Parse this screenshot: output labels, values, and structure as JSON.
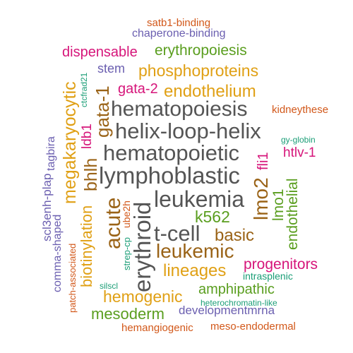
{
  "colors": {
    "gray": "#555555",
    "brown": "#9a6317",
    "gold": "#e0a015",
    "green": "#5a9e1f",
    "magenta": "#d6157a",
    "purple": "#6b5fb0",
    "orange": "#d2581a",
    "teal": "#1b9e77"
  },
  "words": [
    {
      "text": "satb1-binding",
      "color": "orange"
    },
    {
      "text": "chaperone-binding",
      "color": "purple"
    },
    {
      "text": "dispensable",
      "color": "magenta"
    },
    {
      "text": "erythropoiesis",
      "color": "green"
    },
    {
      "text": "stem",
      "color": "purple"
    },
    {
      "text": "phosphoproteins",
      "color": "gold"
    },
    {
      "text": "gata-2",
      "color": "magenta"
    },
    {
      "text": "endothelium",
      "color": "gold"
    },
    {
      "text": "gata-1",
      "color": "brown"
    },
    {
      "text": "hematopoiesis",
      "color": "gray"
    },
    {
      "text": "kidneythese",
      "color": "orange"
    },
    {
      "text": "helix-loop-helix",
      "color": "gray"
    },
    {
      "text": "gy-globin",
      "color": "teal"
    },
    {
      "text": "hematopoietic",
      "color": "gray"
    },
    {
      "text": "htlv-1",
      "color": "magenta"
    },
    {
      "text": "lymphoblastic",
      "color": "gray"
    },
    {
      "text": "leukemia",
      "color": "gray"
    },
    {
      "text": "k562",
      "color": "green"
    },
    {
      "text": "t-cell",
      "color": "gray"
    },
    {
      "text": "basic",
      "color": "brown"
    },
    {
      "text": "leukemic",
      "color": "brown"
    },
    {
      "text": "progenitors",
      "color": "magenta"
    },
    {
      "text": "lineages",
      "color": "gold"
    },
    {
      "text": "intrasplenic",
      "color": "teal"
    },
    {
      "text": "amphipathic",
      "color": "green"
    },
    {
      "text": "hemogenic",
      "color": "gold"
    },
    {
      "text": "heterochromatin-like",
      "color": "teal"
    },
    {
      "text": "mesoderm",
      "color": "green"
    },
    {
      "text": "developmentmrna",
      "color": "purple"
    },
    {
      "text": "hemangiogenic",
      "color": "orange"
    },
    {
      "text": "meso-endodermal",
      "color": "orange"
    },
    {
      "text": "silscl",
      "color": "teal"
    },
    {
      "text": "megakaryocytic",
      "color": "gold"
    },
    {
      "text": "ctcfrad21",
      "color": "teal"
    },
    {
      "text": "tagbira",
      "color": "purple"
    },
    {
      "text": "ldb1",
      "color": "magenta"
    },
    {
      "text": "bhlh",
      "color": "brown"
    },
    {
      "text": "scl3enh-plap",
      "color": "purple"
    },
    {
      "text": "comma-shaped",
      "color": "purple"
    },
    {
      "text": "patch-associated",
      "color": "orange"
    },
    {
      "text": "biotinylation",
      "color": "gold"
    },
    {
      "text": "acute",
      "color": "brown"
    },
    {
      "text": "ube2h",
      "color": "orange"
    },
    {
      "text": "strep-cp",
      "color": "teal"
    },
    {
      "text": "erythroid",
      "color": "gray"
    },
    {
      "text": "lmo2",
      "color": "brown"
    },
    {
      "text": "fli1",
      "color": "magenta"
    },
    {
      "text": "lmo1",
      "color": "green"
    },
    {
      "text": "endothelial",
      "color": "green"
    }
  ]
}
